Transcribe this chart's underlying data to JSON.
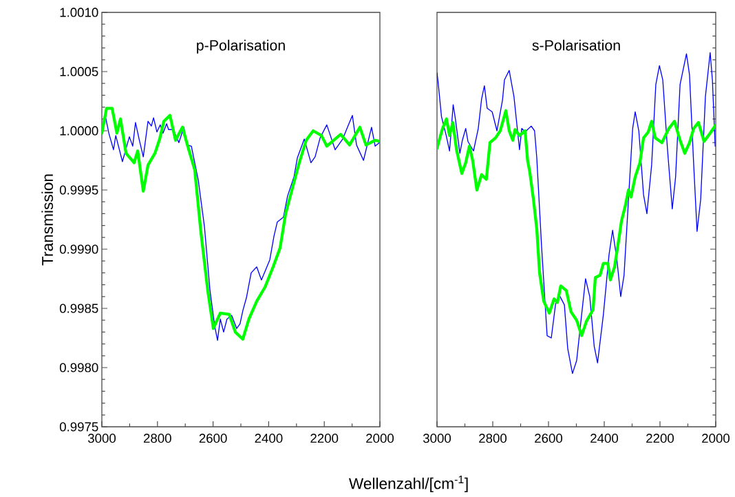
{
  "chart_data": [
    {
      "type": "line",
      "title": "p-Polarisation",
      "xlabel": "Wellenzahl/[cm$^{-1}$]",
      "ylabel": "Transmission",
      "xlim": [
        3000,
        2000
      ],
      "xticks": [
        3000,
        2800,
        2600,
        2400,
        2200,
        2000
      ],
      "ylim": [
        0.9975,
        1.001
      ],
      "yticks": [
        {
          "value": 0.9975,
          "label": "0.9975"
        },
        {
          "value": 0.998,
          "label": "0.9980"
        },
        {
          "value": 0.9985,
          "label": "0.9985"
        },
        {
          "value": 0.999,
          "label": "0.9990"
        },
        {
          "value": 0.9995,
          "label": "0.9995"
        },
        {
          "value": 1.0,
          "label": "1.0000"
        },
        {
          "value": 1.0005,
          "label": "1.0005"
        },
        {
          "value": 1.001,
          "label": "1.0010"
        }
      ],
      "grid": false,
      "marker": "none",
      "line_style": "solid",
      "series": [
        {
          "color": "#0000ff",
          "x": [
            3000,
            2987,
            2975,
            2958,
            2950,
            2926,
            2901,
            2889,
            2879,
            2866,
            2851,
            2834,
            2822,
            2814,
            2802,
            2790,
            2780,
            2767,
            2760,
            2743,
            2723,
            2705,
            2693,
            2678,
            2653,
            2631,
            2611,
            2594,
            2584,
            2574,
            2562,
            2550,
            2533,
            2515,
            2503,
            2493,
            2480,
            2463,
            2443,
            2426,
            2396,
            2381,
            2369,
            2347,
            2332,
            2309,
            2297,
            2272,
            2248,
            2233,
            2215,
            2191,
            2161,
            2134,
            2099,
            2084,
            2059,
            2030,
            2017,
            2002
          ],
          "values": [
            1.0,
            1.00012,
            0.99998,
            0.99984,
            0.99996,
            0.99974,
            0.99995,
            0.99987,
            1.00007,
            0.99993,
            0.99978,
            1.00008,
            1.00004,
            1.00011,
            0.99999,
            1.00005,
            0.99998,
            1.00006,
            1.00001,
            1.00001,
            0.9999,
            1.00003,
            0.99988,
            0.99987,
            0.99958,
            0.99919,
            0.99865,
            0.99835,
            0.99823,
            0.99841,
            0.9983,
            0.99841,
            0.99844,
            0.99833,
            0.99837,
            0.99848,
            0.99859,
            0.9988,
            0.99885,
            0.99874,
            0.99891,
            0.99911,
            0.99923,
            0.99927,
            0.99945,
            0.99961,
            0.99977,
            0.99993,
            0.99973,
            0.99978,
            0.99994,
            1.00005,
            0.99984,
            0.99993,
            1.00013,
            0.99988,
            0.99975,
            1.00003,
            0.99987,
            0.9999
          ]
        },
        {
          "color": "#00ff00",
          "x": [
            3000,
            2983,
            2963,
            2946,
            2933,
            2913,
            2884,
            2871,
            2851,
            2834,
            2809,
            2792,
            2777,
            2755,
            2735,
            2710,
            2691,
            2666,
            2644,
            2619,
            2599,
            2574,
            2542,
            2520,
            2493,
            2471,
            2443,
            2413,
            2384,
            2359,
            2339,
            2314,
            2290,
            2265,
            2240,
            2210,
            2191,
            2141,
            2109,
            2072,
            2050,
            2017,
            2000
          ],
          "values": [
            0.99998,
            1.00019,
            1.00019,
            0.99998,
            1.0001,
            0.99981,
            0.99973,
            0.99983,
            0.99949,
            0.99971,
            0.99981,
            0.99993,
            1.00008,
            1.00013,
            0.99992,
            1.00003,
            0.99987,
            0.99967,
            0.99915,
            0.99865,
            0.99833,
            0.99846,
            0.99845,
            0.9983,
            0.99824,
            0.99841,
            0.99856,
            0.99868,
            0.99885,
            0.99901,
            0.9993,
            0.99952,
            0.99973,
            0.99992,
            1.0,
            0.99996,
            0.99987,
            0.99997,
            0.99988,
            1.00003,
            0.99988,
            0.99992,
            0.99991
          ]
        }
      ]
    },
    {
      "type": "line",
      "title": "s-Polarisation",
      "xlim": [
        3000,
        2000
      ],
      "xticks": [
        3000,
        2800,
        2600,
        2400,
        2200,
        2000
      ],
      "ylim": [
        0.9975,
        1.001
      ],
      "yticks": [
        0.9975,
        0.998,
        0.9985,
        0.999,
        0.9995,
        1.0,
        1.0005,
        1.001
      ],
      "tick_labels": "x",
      "grid": false,
      "marker": "none",
      "line_style": "solid",
      "series": [
        {
          "color": "#0000ff",
          "x": [
            3000,
            2996,
            2984,
            2967,
            2955,
            2942,
            2934,
            2918,
            2909,
            2897,
            2889,
            2869,
            2852,
            2840,
            2830,
            2820,
            2802,
            2785,
            2765,
            2758,
            2741,
            2724,
            2704,
            2696,
            2684,
            2662,
            2650,
            2642,
            2625,
            2605,
            2590,
            2575,
            2563,
            2543,
            2531,
            2514,
            2499,
            2481,
            2467,
            2452,
            2436,
            2424,
            2403,
            2383,
            2370,
            2354,
            2341,
            2329,
            2313,
            2298,
            2289,
            2276,
            2259,
            2247,
            2230,
            2215,
            2202,
            2190,
            2173,
            2156,
            2144,
            2128,
            2105,
            2094,
            2079,
            2067,
            2054,
            2037,
            2020,
            2012,
            2002
          ],
          "values": [
            1.00049,
            1.00041,
            1.00012,
            0.99996,
            0.99983,
            1.00022,
            1.0001,
            0.99981,
            0.99992,
            1.00002,
            0.99991,
            0.99983,
            1.00002,
            1.00027,
            1.00038,
            1.00019,
            1.00016,
            1.0,
            1.00026,
            1.00043,
            1.00051,
            1.00029,
            0.99984,
            1.00002,
            0.99999,
            1.00004,
            1.0,
            0.99977,
            0.99903,
            0.99827,
            0.99825,
            0.99853,
            0.99862,
            0.99853,
            0.99816,
            0.99795,
            0.99806,
            0.99845,
            0.99875,
            0.9986,
            0.99818,
            0.99804,
            0.99845,
            0.99895,
            0.99916,
            0.9989,
            0.9986,
            0.99878,
            0.99942,
            1.00002,
            1.00016,
            1.0,
            0.99946,
            0.9993,
            0.99971,
            1.00039,
            1.00055,
            1.00043,
            0.99984,
            0.99934,
            0.99961,
            1.00039,
            1.00065,
            1.00047,
            0.99971,
            0.99915,
            0.99942,
            1.00029,
            1.00066,
            1.00043,
            0.99987
          ]
        },
        {
          "color": "#00ff00",
          "x": [
            3000,
            2992,
            2980,
            2966,
            2955,
            2943,
            2930,
            2911,
            2897,
            2884,
            2872,
            2857,
            2840,
            2823,
            2810,
            2790,
            2773,
            2753,
            2741,
            2728,
            2720,
            2704,
            2684,
            2675,
            2667,
            2654,
            2642,
            2632,
            2617,
            2597,
            2580,
            2568,
            2556,
            2536,
            2519,
            2499,
            2481,
            2464,
            2440,
            2432,
            2415,
            2403,
            2387,
            2378,
            2363,
            2346,
            2338,
            2325,
            2313,
            2304,
            2289,
            2272,
            2259,
            2242,
            2230,
            2217,
            2193,
            2168,
            2148,
            2128,
            2111,
            2094,
            2079,
            2062,
            2042,
            2020,
            2000
          ],
          "values": [
            0.99985,
            0.99992,
            1.00002,
            1.0001,
            0.99996,
            1.00007,
            0.99984,
            0.99964,
            0.99973,
            0.99987,
            0.99975,
            0.9995,
            0.99963,
            0.99959,
            0.9999,
            0.99994,
            1.0,
            1.00017,
            1.0,
            0.99992,
            1.00001,
            0.99996,
            1.0,
            0.99975,
            0.99965,
            0.99942,
            0.99917,
            0.9988,
            0.99856,
            0.99846,
            0.99858,
            0.99855,
            0.99869,
            0.99865,
            0.99847,
            0.9984,
            0.99827,
            0.99839,
            0.99849,
            0.99876,
            0.99878,
            0.99888,
            0.99888,
            0.99874,
            0.99885,
            0.99911,
            0.99924,
            0.99936,
            0.9995,
            0.99944,
            0.99961,
            0.99973,
            0.99994,
            0.99999,
            1.00008,
            0.99994,
            0.9999,
            1.00002,
            1.00008,
            0.99992,
            0.99981,
            0.9999,
            1.00002,
            1.00007,
            0.99991,
            0.99998,
            1.00005
          ]
        }
      ]
    }
  ]
}
